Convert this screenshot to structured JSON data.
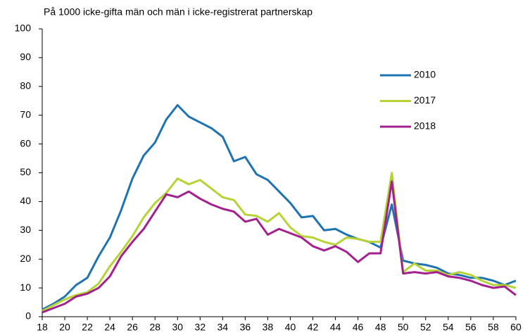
{
  "chart_data": {
    "type": "line",
    "title": "På 1000 icke-gifta män och män i icke-registrerat partnerskap",
    "x": [
      18,
      19,
      20,
      21,
      22,
      23,
      24,
      25,
      26,
      27,
      28,
      29,
      30,
      31,
      32,
      33,
      34,
      35,
      36,
      37,
      38,
      39,
      40,
      41,
      42,
      43,
      44,
      45,
      46,
      47,
      48,
      49,
      50,
      51,
      52,
      53,
      54,
      55,
      56,
      57,
      58,
      59,
      60
    ],
    "series": [
      {
        "name": "2010",
        "color": "#1f73b0",
        "values": [
          2.5,
          4.5,
          7,
          11,
          13.5,
          21,
          27.5,
          37,
          48,
          56,
          60.5,
          68.5,
          73.5,
          69.5,
          67.5,
          65.5,
          62.5,
          54,
          55.5,
          49.5,
          47.5,
          43.5,
          39.5,
          34.5,
          35,
          30,
          30.5,
          28.5,
          27,
          26,
          24,
          39,
          19.5,
          18.5,
          18,
          17,
          15,
          14.5,
          13.5,
          13.5,
          12.5,
          11,
          12.5
        ]
      },
      {
        "name": "2017",
        "color": "#b6d334",
        "values": [
          2,
          4,
          6,
          7.5,
          8.5,
          11.5,
          17.5,
          22.5,
          28,
          34.5,
          39.5,
          43,
          48,
          46,
          47.5,
          44.5,
          41.5,
          40.5,
          35.5,
          35,
          33,
          36,
          31,
          28,
          27.5,
          26,
          25,
          27.5,
          27,
          26,
          26,
          50,
          15.5,
          18.5,
          16,
          16,
          14.5,
          15.5,
          14.5,
          12.5,
          11,
          11,
          10
        ]
      },
      {
        "name": "2018",
        "color": "#a3218e",
        "values": [
          1.5,
          3,
          4.5,
          7,
          8,
          10,
          14,
          21,
          26,
          30.5,
          36.5,
          42.5,
          41.5,
          43.5,
          41,
          39,
          37.5,
          36.5,
          33,
          34,
          28.5,
          30.5,
          29,
          27.5,
          24.5,
          23,
          24.5,
          22.5,
          19,
          22,
          22,
          47,
          15,
          15.5,
          15,
          15.5,
          14,
          13.5,
          12.5,
          11,
          10,
          10.5,
          7.5
        ]
      }
    ],
    "xlim": [
      18,
      60
    ],
    "xticks": [
      18,
      20,
      22,
      24,
      26,
      28,
      30,
      32,
      34,
      36,
      38,
      40,
      42,
      44,
      46,
      48,
      50,
      52,
      54,
      56,
      58,
      60
    ],
    "ylim": [
      0,
      100
    ],
    "yticks": [
      0,
      10,
      20,
      30,
      40,
      50,
      60,
      70,
      80,
      90,
      100
    ],
    "grid": false
  }
}
